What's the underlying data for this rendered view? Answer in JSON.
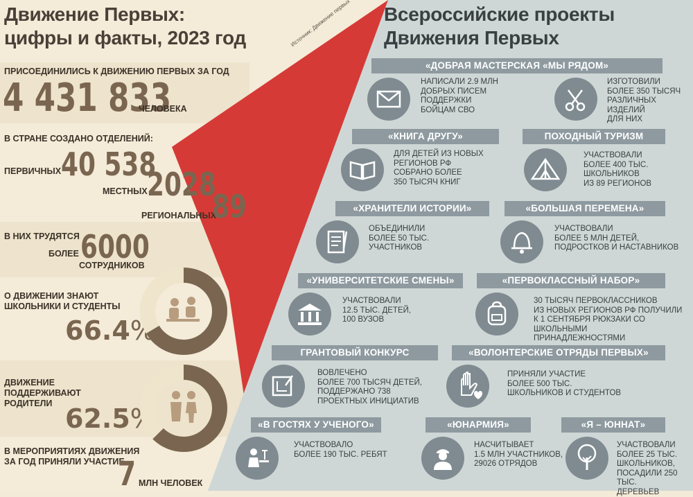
{
  "left": {
    "title_line1": "Движение Первых:",
    "title_line2": "цифры и факты, 2023 год",
    "joined_label": "ПРИСОЕДИНИЛИСЬ К ДВИЖЕНИЮ ПЕРВЫХ ЗА ГОД",
    "joined_value": "4 431 833",
    "joined_unit": "ЧЕЛОВЕКА",
    "branches_label": "В СТРАНЕ СОЗДАНО ОТДЕЛЕНИЙ:",
    "primary_label": "ПЕРВИЧНЫХ",
    "primary_value": "40 538",
    "local_label": "МЕСТНЫХ",
    "local_value": "2028",
    "regional_label": "РЕГИОНАЛЬНЫХ",
    "regional_value": "89",
    "staff_label": "В НИХ ТРУДЯТСЯ",
    "staff_prefix": "БОЛЕЕ",
    "staff_value": "6000",
    "staff_unit": "СОТРУДНИКОВ",
    "aware_label": "О ДВИЖЕНИИ ЗНАЮТ\nШКОЛЬНИКИ И СТУДЕНТЫ",
    "aware_value": "66.4",
    "aware_percent": 66.4,
    "parents_label": "ДВИЖЕНИЕ\nПОДДЕРЖИВАЮТ\nРОДИТЕЛИ",
    "parents_value": "62.5",
    "parents_percent": 62.5,
    "percent_sign": "%",
    "events_label": "В МЕРОПРИЯТИЯХ ДВИЖЕНИЯ\nЗА ГОД ПРИНЯЛИ УЧАСТИЕ",
    "events_value": "7",
    "events_unit": "МЛН ЧЕЛОВЕК"
  },
  "source": "Источник: Движение первых",
  "right": {
    "title_line1": "Всероссийские проекты",
    "title_line2": "Движения Первых",
    "projects": [
      {
        "header": "«ДОБРАЯ МАСТЕРСКАЯ «МЫ РЯДОМ»"
      },
      {
        "header": "«КНИГА ДРУГУ»"
      },
      {
        "header": "ПОХОДНЫЙ ТУРИЗМ"
      },
      {
        "header": "«ХРАНИТЕЛИ ИСТОРИИ»"
      },
      {
        "header": "«БОЛЬШАЯ ПЕРЕМЕНА»"
      },
      {
        "header": "«УНИВЕРСИТЕТСКИЕ СМЕНЫ»"
      },
      {
        "header": "«ПЕРВОКЛАССНЫЙ НАБОР»"
      },
      {
        "header": "ГРАНТОВЫЙ КОНКУРС"
      },
      {
        "header": "«ВОЛОНТЕРСКИЕ ОТРЯДЫ ПЕРВЫХ»"
      },
      {
        "header": "«В ГОСТЯХ У УЧЕНОГО»"
      },
      {
        "header": "«ЮНАРМИЯ»"
      },
      {
        "header": "«Я – ЮННАТ»"
      }
    ],
    "texts": {
      "letters": "НАПИСАЛИ 2.9 МЛН\nДОБРЫХ ПИСЕМ\nПОДДЕРЖКИ\nБОЙЦАМ СВО",
      "items": "ИЗГОТОВИЛИ\nБОЛЕЕ 350 ТЫСЯЧ\nРАЗЛИЧНЫХ ИЗДЕЛИЙ\nДЛЯ НИХ",
      "books": "ДЛЯ ДЕТЕЙ ИЗ НОВЫХ\nРЕГИОНОВ РФ\nСОБРАНО БОЛЕЕ\n350 ТЫСЯЧ КНИГ",
      "tourism": "УЧАСТВОВАЛИ\nБОЛЕЕ 400 ТЫС.\nШКОЛЬНИКОВ\nИЗ  89 РЕГИОНОВ",
      "history": "ОБЪЕДИНИЛИ\nБОЛЕЕ 50 ТЫС.\nУЧАСТНИКОВ",
      "break": "УЧАСТВОВАЛИ\nБОЛЕЕ 5 МЛН ДЕТЕЙ,\nПОДРОСТКОВ И НАСТАВНИКОВ",
      "university": "УЧАСТВОВАЛИ\n12.5 ТЫС. ДЕТЕЙ,\n100 ВУЗОВ",
      "firstgrade": "30 ТЫСЯЧ ПЕРВОКЛАССНИКОВ\nИЗ НОВЫХ РЕГИОНОВ РФ ПОЛУЧИЛИ\nК 1 СЕНТЯБРЯ РЮКЗАКИ СО ШКОЛЬНЫМИ\nПРИНАДЛЕЖНОСТЯМИ",
      "grant": "ВОВЛЕЧЕНО\nБОЛЕЕ 700 ТЫСЯЧ ДЕТЕЙ,\nПОДДЕРЖАНО 738\nПРОЕКТНЫХ ИНИЦИАТИВ",
      "volunteer": "ПРИНЯЛИ УЧАСТИЕ\nБОЛЕЕ 500 ТЫС.\nШКОЛЬНИКОВ И СТУДЕНТОВ",
      "scientist": "УЧАСТВОВАЛО\nБОЛЕЕ 190 ТЫС. РЕБЯТ",
      "yunarmiya": "НАСЧИТЫВАЕТ\n1.5 МЛН УЧАСТНИКОВ,\n29026 ОТРЯДОВ",
      "yunnat": "УЧАСТВОВАЛИ\nБОЛЕЕ 25 ТЫС.\nШКОЛЬНИКОВ,\nПОСАДИЛИ 250 ТЫС.\nДЕРЕВЬЕВ"
    }
  },
  "colors": {
    "accent": "#d63a36",
    "right_bg": "#cfd7d6",
    "header": "#8e9aa0",
    "icon": "#7f8b90",
    "brown": "#7a6650",
    "ring_track": "#efe4cc"
  }
}
